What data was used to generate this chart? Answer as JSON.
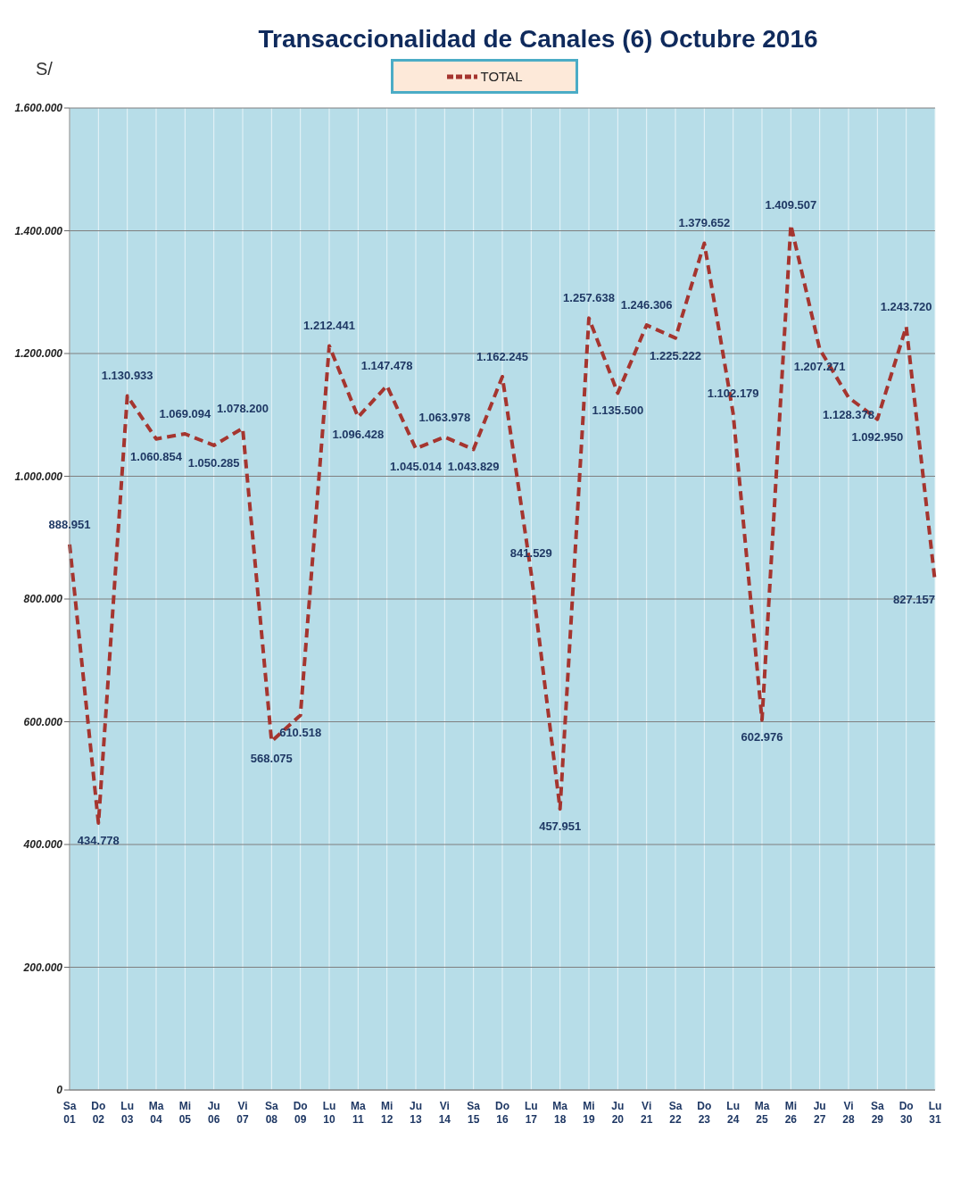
{
  "chart_data": {
    "type": "line",
    "title": "Transaccionalidad de Canales (6)  Octubre  2016",
    "ylabel": "S/",
    "categories": [
      "Sa 01",
      "Do 02",
      "Lu 03",
      "Ma 04",
      "Mi 05",
      "Ju 06",
      "Vi 07",
      "Sa 08",
      "Do 09",
      "Lu 10",
      "Ma 11",
      "Mi 12",
      "Ju 13",
      "Vi 14",
      "Sa 15",
      "Do 16",
      "Lu 17",
      "Ma 18",
      "Mi 19",
      "Ju 20",
      "Vi 21",
      "Sa 22",
      "Do 23",
      "Lu 24",
      "Ma 25",
      "Mi 26",
      "Ju 27",
      "Vi 28",
      "Sa 29",
      "Do 30",
      "Lu 31"
    ],
    "series": [
      {
        "name": "TOTAL",
        "color": "#a5352f",
        "values": [
          888951,
          434778,
          1130933,
          1060854,
          1069094,
          1050285,
          1078200,
          568075,
          610518,
          1212441,
          1096428,
          1147478,
          1045014,
          1063978,
          1043829,
          1162245,
          841529,
          457951,
          1257638,
          1135500,
          1246306,
          1225222,
          1379652,
          1102179,
          602976,
          1409507,
          1207271,
          1128378,
          1092950,
          1243720,
          827157
        ],
        "value_labels": [
          "888.951",
          "434.778",
          "1.130.933",
          "1.060.854",
          "1.069.094",
          "1.050.285",
          "1.078.200",
          "568.075",
          "610.518",
          "1.212.441",
          "1.096.428",
          "1.147.478",
          "1.045.014",
          "1.063.978",
          "1.043.829",
          "1.162.245",
          "841.529",
          "457.951",
          "1.257.638",
          "1.135.500",
          "1.246.306",
          "1.225.222",
          "1.379.652",
          "1.102.179",
          "602.976",
          "1.409.507",
          "1.207.271",
          "1.128.378",
          "1.092.950",
          "1.243.720",
          "827.157"
        ]
      }
    ],
    "ylim": [
      0,
      1600000
    ],
    "yticks": [
      {
        "value": 0,
        "label": "0"
      },
      {
        "value": 200000,
        "label": "200.000"
      },
      {
        "value": 400000,
        "label": "400.000"
      },
      {
        "value": 600000,
        "label": "600.000"
      },
      {
        "value": 800000,
        "label": "800.000"
      },
      {
        "value": 1000000,
        "label": "1.000.000"
      },
      {
        "value": 1200000,
        "label": "1.200.000"
      },
      {
        "value": 1400000,
        "label": "1.400.000"
      },
      {
        "value": 1600000,
        "label": "1.600.000"
      }
    ],
    "grid": true,
    "legend": "top",
    "marker": "none",
    "line_style": "dashed"
  }
}
